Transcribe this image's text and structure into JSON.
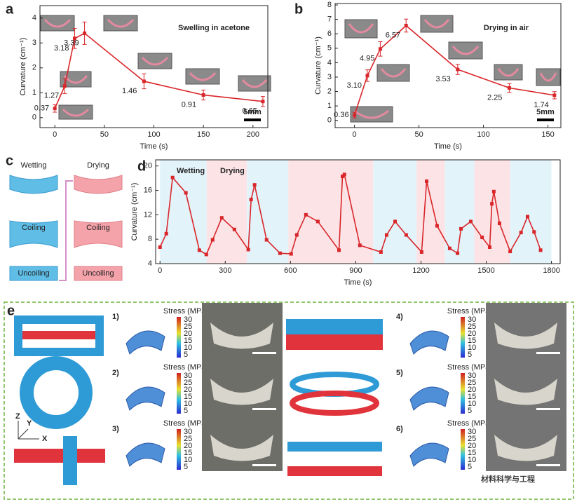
{
  "chart_data": [
    {
      "type": "line",
      "panel": "a",
      "title": "Swelling in acetone",
      "title_color": "#2aa7d6",
      "scale_bar": "5mm",
      "x_label": "Time (s)",
      "y_label": "Curvature (cm⁻¹)",
      "color": "#d9262a",
      "x": [
        0,
        10,
        20,
        30,
        90,
        150,
        210
      ],
      "values": [
        0.37,
        1.27,
        3.18,
        3.39,
        1.46,
        0.91,
        0.65
      ],
      "errors": [
        0.15,
        0.3,
        0.4,
        0.45,
        0.3,
        0.2,
        0.2
      ],
      "xlim": [
        -15,
        215
      ],
      "xticks": [
        0,
        50,
        100,
        150,
        200
      ],
      "ylim": [
        -0.4,
        4.5
      ],
      "yticks": [
        0,
        1,
        2,
        3,
        4
      ]
    },
    {
      "type": "line",
      "panel": "b",
      "title": "Drying in air",
      "title_color": "#d9262a",
      "scale_bar": "5mm",
      "x_label": "Time (s)",
      "y_label": "Curvature (cm⁻¹)",
      "color": "#d9262a",
      "x": [
        0,
        10,
        20,
        40,
        80,
        120,
        155
      ],
      "values": [
        0.36,
        3.1,
        4.95,
        6.57,
        3.53,
        2.25,
        1.74
      ],
      "value_labels": [
        "0.36",
        "3.10",
        "4.95",
        "6.57",
        "3.53",
        "2.25",
        "1.74"
      ],
      "errors": [
        0.2,
        0.4,
        0.5,
        0.45,
        0.35,
        0.3,
        0.25
      ],
      "xlim": [
        -15,
        160
      ],
      "xticks": [
        0,
        50,
        100,
        150
      ],
      "ylim": [
        -0.5,
        8.1
      ],
      "yticks": [
        0,
        1,
        2,
        3,
        4,
        5,
        6,
        7,
        8
      ]
    },
    {
      "type": "line",
      "panel": "d",
      "x_label": "Time (s)",
      "y_label": "Curvature (cm⁻¹)",
      "color": "#d9262a",
      "annotations": [
        "Wetting",
        "Drying"
      ],
      "x": [
        0,
        29,
        58,
        119,
        181,
        213,
        242,
        284,
        342,
        406,
        419,
        435,
        490,
        552,
        603,
        629,
        671,
        726,
        823,
        839,
        848,
        919,
        1016,
        1042,
        1081,
        1132,
        1203,
        1226,
        1274,
        1332,
        1368,
        1384,
        1429,
        1481,
        1516,
        1526,
        1535,
        1561,
        1610,
        1660,
        1690,
        1720,
        1750
      ],
      "values": [
        6.7,
        8.9,
        18.1,
        15.6,
        6.2,
        5.5,
        7.9,
        11.5,
        9.6,
        6.3,
        14.5,
        16.9,
        7.9,
        5.7,
        5.6,
        8.7,
        12.0,
        10.9,
        6.2,
        18.3,
        18.6,
        7.0,
        5.9,
        8.7,
        10.9,
        8.7,
        5.9,
        17.5,
        10.2,
        6.5,
        5.7,
        9.7,
        10.9,
        8.3,
        6.7,
        13.8,
        15.8,
        10.6,
        6.0,
        9.1,
        11.7,
        9.2,
        6.2
      ],
      "bands": [
        [
          0,
          215
        ],
        [
          215,
          400
        ],
        [
          400,
          590
        ],
        [
          590,
          980
        ],
        [
          980,
          1180
        ],
        [
          1180,
          1310
        ],
        [
          1310,
          1445
        ],
        [
          1445,
          1610
        ],
        [
          1610,
          1800
        ]
      ],
      "band_colors": [
        "#e3f3fa",
        "#fbe3e6"
      ],
      "xlim": [
        -20,
        1840
      ],
      "xticks": [
        0,
        300,
        600,
        900,
        1200,
        1500,
        1800
      ],
      "ylim": [
        4,
        21
      ],
      "yticks": [
        4,
        8,
        12,
        16,
        20
      ]
    }
  ],
  "panel_c": {
    "label": "c",
    "wet": [
      "Wetting",
      "Coiling",
      "Uncoiling"
    ],
    "dry": [
      "Drying",
      "Coiling",
      "Uncoiling"
    ]
  },
  "panel_e": {
    "label": "e",
    "items": [
      "1)",
      "2)",
      "3)",
      "4)",
      "5)",
      "6)"
    ],
    "stress_title": "Stress (MPa)",
    "colorbar_ticks": [
      5,
      10,
      15,
      20,
      25,
      30
    ],
    "axes": [
      "Z",
      "Y",
      "X"
    ],
    "watermark": "材料科学与工程"
  }
}
